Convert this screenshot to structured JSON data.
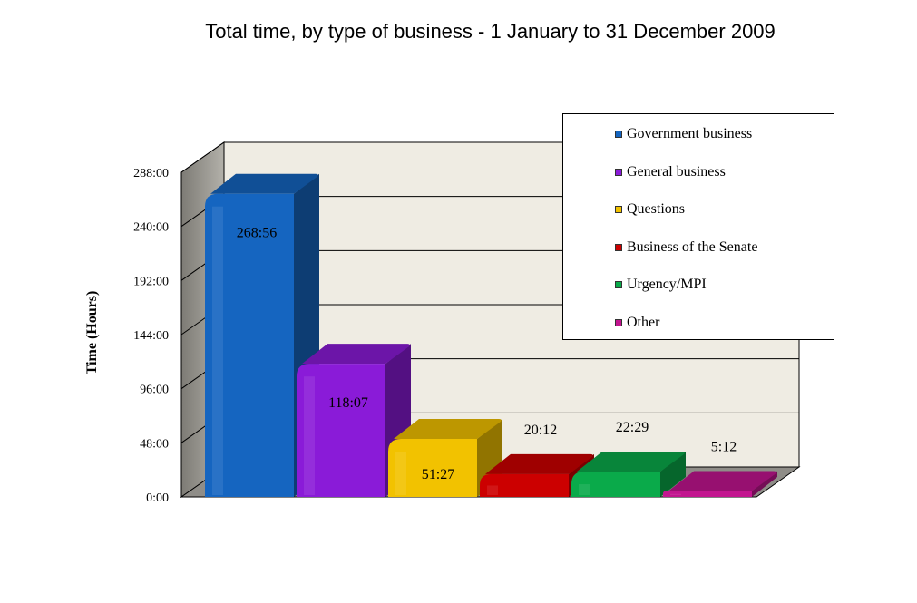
{
  "chart_data": {
    "type": "bar",
    "title": "Total time, by type of business - 1 January to 31 December 2009",
    "xlabel": "",
    "ylabel": "Time (Hours)",
    "ylim": [
      0,
      288
    ],
    "yticks": [
      "0:00",
      "48:00",
      "96:00",
      "144:00",
      "192:00",
      "240:00",
      "288:00"
    ],
    "grid": true,
    "legend_position": "top-right",
    "categories": [
      "Government business",
      "General business",
      "Questions",
      "Business of the Senate",
      "Urgency/MPI",
      "Other"
    ],
    "values": [
      268.93,
      118.12,
      51.45,
      20.2,
      22.48,
      5.2
    ],
    "value_labels": [
      "268:56",
      "118:07",
      "51:27",
      "20:12",
      "22:29",
      "5:12"
    ],
    "colors": [
      "#1565c0",
      "#8a1bd8",
      "#f2c200",
      "#cc0000",
      "#0aaa4a",
      "#c2158f"
    ]
  }
}
